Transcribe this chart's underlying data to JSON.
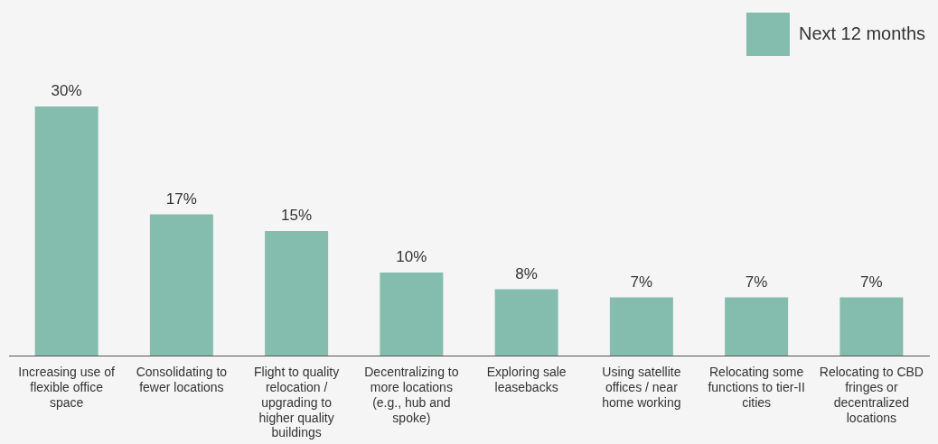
{
  "chart_data": {
    "type": "bar",
    "categories": [
      "Increasing use of flexible office space",
      "Consolidating to fewer locations",
      "Flight to quality relocation / upgrading to higher quality buildings",
      "Decentralizing to more locations (e.g., hub and spoke)",
      "Exploring sale leasebacks",
      "Using satellite offices / near home working",
      "Relocating some functions to tier-II cities",
      "Relocating to CBD fringes or decentralized locations"
    ],
    "series": [
      {
        "name": "Next 12 months",
        "color": "#84bcad",
        "values": [
          30,
          17,
          15,
          10,
          8,
          7,
          7,
          7
        ],
        "value_labels": [
          "30%",
          "17%",
          "15%",
          "10%",
          "8%",
          "7%",
          "7%",
          "7%"
        ]
      }
    ],
    "legend": "top right"
  }
}
